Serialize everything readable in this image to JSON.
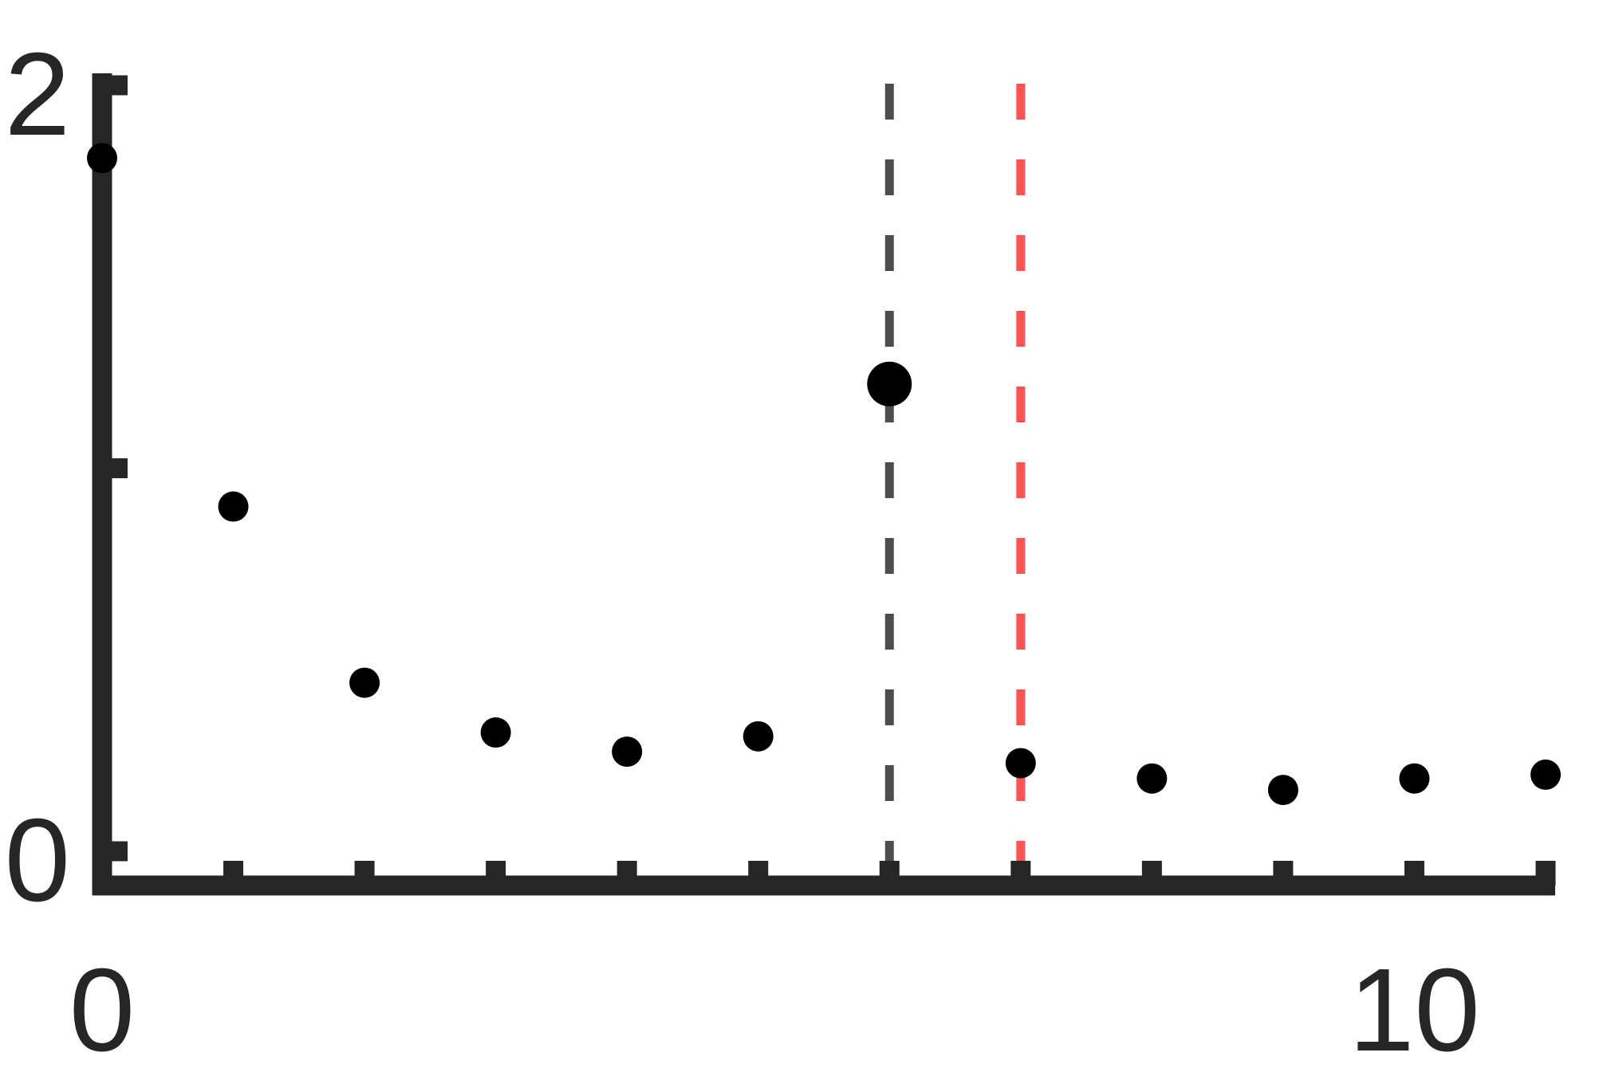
{
  "chart_data": {
    "type": "scatter",
    "title": "",
    "xlabel": "",
    "ylabel": "",
    "xlim": [
      0,
      11
    ],
    "ylim": [
      0,
      2
    ],
    "x_ticks": [
      0,
      1,
      2,
      3,
      4,
      5,
      6,
      7,
      8,
      9,
      10,
      11
    ],
    "y_ticks": [
      0,
      1,
      2
    ],
    "x_tick_labels": [
      {
        "value": 0,
        "label": "0"
      },
      {
        "value": 10,
        "label": "10"
      }
    ],
    "y_tick_labels": [
      {
        "value": 0,
        "label": "0"
      },
      {
        "value": 2,
        "label": "2"
      }
    ],
    "grid": false,
    "series": [
      {
        "points": [
          {
            "x": 0,
            "y": 1.81,
            "size": "normal"
          },
          {
            "x": 1,
            "y": 0.9,
            "size": "normal"
          },
          {
            "x": 2,
            "y": 0.44,
            "size": "normal"
          },
          {
            "x": 3,
            "y": 0.31,
            "size": "normal"
          },
          {
            "x": 4,
            "y": 0.26,
            "size": "normal"
          },
          {
            "x": 5,
            "y": 0.3,
            "size": "normal"
          },
          {
            "x": 6,
            "y": 1.22,
            "size": "large"
          },
          {
            "x": 7,
            "y": 0.23,
            "size": "normal"
          },
          {
            "x": 8,
            "y": 0.19,
            "size": "normal"
          },
          {
            "x": 9,
            "y": 0.16,
            "size": "normal"
          },
          {
            "x": 10,
            "y": 0.19,
            "size": "normal"
          },
          {
            "x": 11,
            "y": 0.2,
            "size": "normal"
          }
        ],
        "color": "#000000"
      }
    ],
    "reference_lines": [
      {
        "orientation": "vertical",
        "x": 6,
        "style": "dashed",
        "color": "#4d4d4d"
      },
      {
        "orientation": "vertical",
        "x": 7,
        "style": "dashed",
        "color": "#ff5252"
      }
    ],
    "axis_color": "#262626"
  }
}
